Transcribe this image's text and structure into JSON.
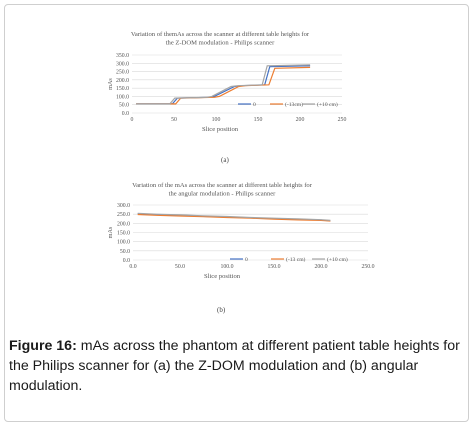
{
  "figure": {
    "panel_a_label": "(a)",
    "panel_b_label": "(b)",
    "caption_label": "Figure 16:",
    "caption_text": " mAs across the phantom at different patient table heights for the Philips scanner for (a) the Z-DOM modulation and (b) angular modulation."
  },
  "chart_data": [
    {
      "type": "line",
      "title": "Variation of themAs across the scanner at different table heights for the Z-DOM modulation - Philips scanner",
      "title_lines": [
        "Variation of themAs across the scanner at different table heights for",
        "the Z-DOM modulation - Philips scanner"
      ],
      "xlabel": "Slice position",
      "ylabel": "mAs",
      "xlim": [
        0,
        250
      ],
      "ylim": [
        0,
        350
      ],
      "xticks": [
        "0",
        "50",
        "100",
        "150",
        "200",
        "250"
      ],
      "yticks": [
        "0.0",
        "50.0",
        "100.0",
        "150.0",
        "200.0",
        "250.0",
        "300.0",
        "350.0"
      ],
      "xtick_values": [
        0,
        50,
        100,
        150,
        200,
        250
      ],
      "ytick_values": [
        0,
        50,
        100,
        150,
        200,
        250,
        300,
        350
      ],
      "grid": true,
      "legend_position": "bottom-right",
      "series": [
        {
          "name": "0",
          "color": "#4472c4",
          "x": [
            5,
            48,
            54,
            92,
            98,
            122,
            130,
            158,
            164,
            212
          ],
          "y": [
            55,
            55,
            90,
            95,
            100,
            160,
            165,
            170,
            280,
            285
          ]
        },
        {
          "name": "(-13cm)",
          "color": "#ed7d31",
          "x": [
            5,
            52,
            58,
            98,
            104,
            127,
            135,
            163,
            170,
            212
          ],
          "y": [
            55,
            55,
            90,
            95,
            100,
            160,
            165,
            170,
            270,
            275
          ]
        },
        {
          "name": "(+10 cm)",
          "color": "#a5a5a5",
          "x": [
            5,
            45,
            51,
            90,
            95,
            118,
            126,
            155,
            161,
            212
          ],
          "y": [
            55,
            55,
            90,
            95,
            100,
            160,
            165,
            170,
            285,
            290
          ]
        }
      ]
    },
    {
      "type": "line",
      "title": "Variation of the mAs across the scanner at different table heights for the angular modulation - Philips scanner",
      "title_lines": [
        "Variation of the mAs across the scanner at different table heights for",
        "the angular modulation - Philips scanner"
      ],
      "xlabel": "Slice position",
      "ylabel": "mAs",
      "xlim": [
        0,
        250
      ],
      "ylim": [
        0,
        300
      ],
      "xticks": [
        "0.0",
        "50.0",
        "100.0",
        "150.0",
        "200.0",
        "250.0"
      ],
      "yticks": [
        "0.0",
        "50.0",
        "100.0",
        "150.0",
        "200.0",
        "250.0",
        "300.0"
      ],
      "xtick_values": [
        0,
        50,
        100,
        150,
        200,
        250
      ],
      "ytick_values": [
        0,
        50,
        100,
        150,
        200,
        250,
        300
      ],
      "grid": true,
      "legend_position": "bottom-right",
      "series": [
        {
          "name": "0",
          "color": "#4472c4",
          "x": [
            5,
            25,
            50,
            75,
            100,
            125,
            150,
            175,
            200,
            210
          ],
          "y": [
            252,
            247,
            243,
            238,
            234,
            230,
            226,
            222,
            218,
            214
          ]
        },
        {
          "name": "(-13 cm)",
          "color": "#ed7d31",
          "x": [
            5,
            25,
            50,
            75,
            100,
            125,
            150,
            175,
            200,
            210
          ],
          "y": [
            248,
            244,
            240,
            236,
            232,
            228,
            223,
            219,
            216,
            213
          ]
        },
        {
          "name": "(+10 cm)",
          "color": "#a5a5a5",
          "x": [
            5,
            25,
            50,
            75,
            100,
            125,
            150,
            175,
            200,
            210
          ],
          "y": [
            255,
            250,
            246,
            241,
            237,
            232,
            228,
            224,
            220,
            216
          ]
        }
      ]
    }
  ]
}
